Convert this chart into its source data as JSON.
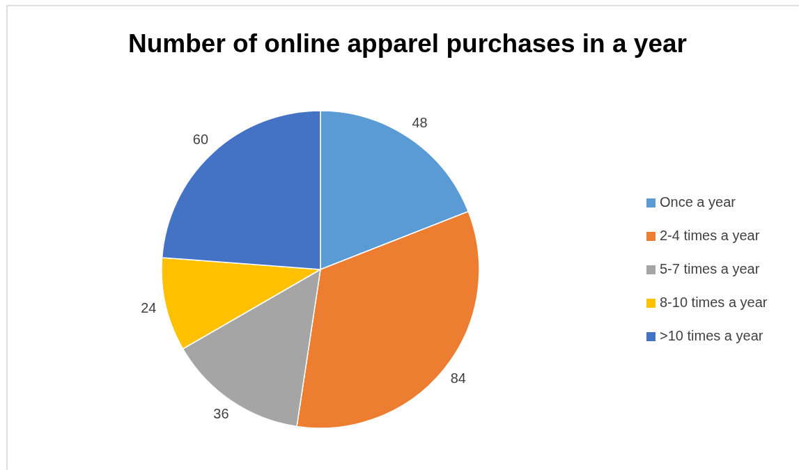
{
  "chart_data": {
    "type": "pie",
    "title": "Number of online apparel purchases in a year",
    "categories": [
      "Once a year",
      "2-4 times a year",
      "5-7 times a year",
      "8-10 times a year",
      ">10 times a year"
    ],
    "values": [
      48,
      84,
      36,
      24,
      60
    ],
    "colors": [
      "#5b9bd5",
      "#ed7d31",
      "#a5a5a5",
      "#ffc000",
      "#4472c4"
    ],
    "data_labels": true,
    "legend": "right"
  }
}
